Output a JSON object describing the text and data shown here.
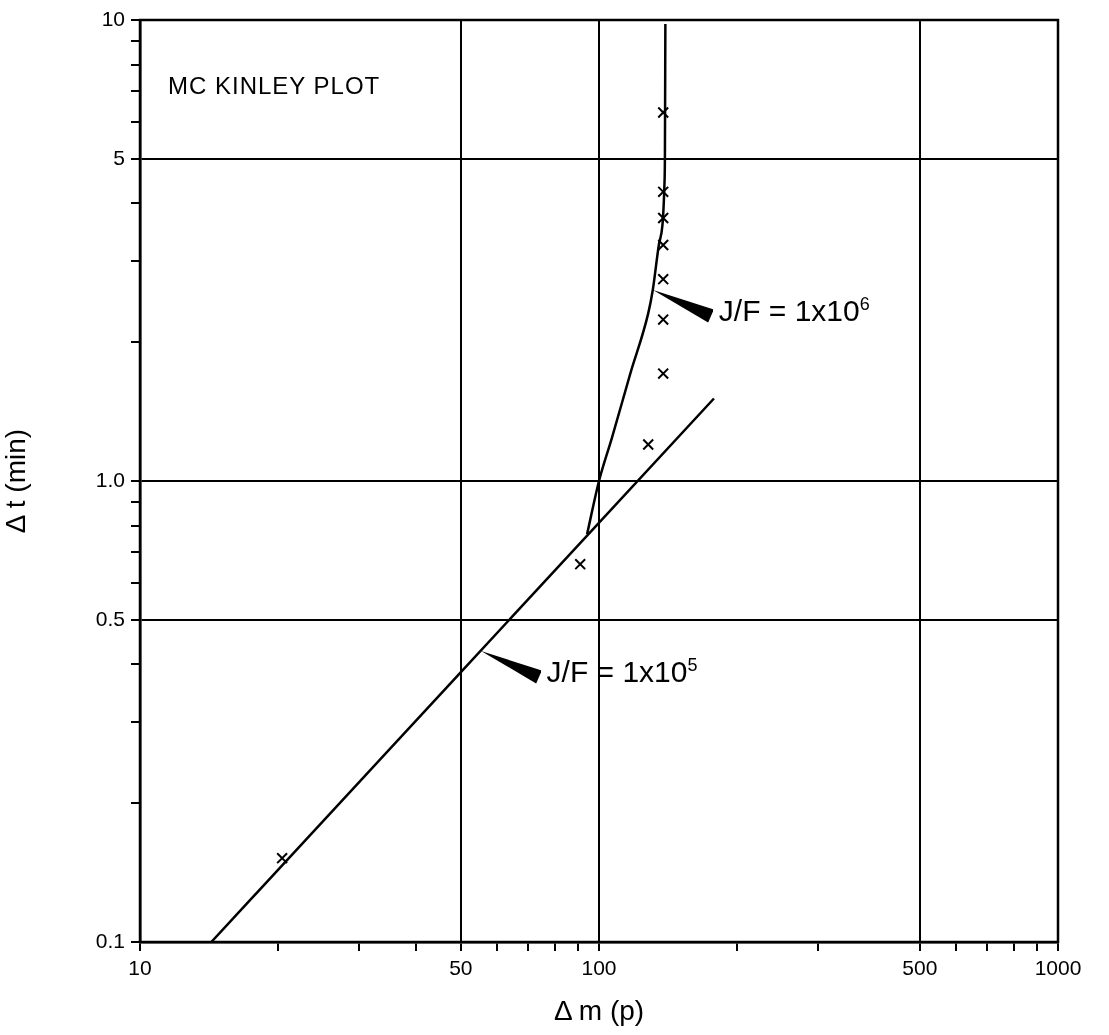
{
  "chart_data": {
    "type": "scatter",
    "title": "MC KINLEY PLOT",
    "xlabel": "Δ m (p)",
    "ylabel": "Δ t (min)",
    "log": "xy",
    "grid": true,
    "legend": false,
    "marker": "cross",
    "xlim": [
      10,
      1000
    ],
    "ylim": [
      0.1,
      10
    ],
    "xticks": [
      10,
      {
        "value": 20,
        "label": null
      },
      {
        "value": 30,
        "label": null
      },
      {
        "value": 40,
        "label": null
      },
      50,
      {
        "value": 60,
        "label": null
      },
      {
        "value": 70,
        "label": null
      },
      {
        "value": 80,
        "label": null
      },
      {
        "value": 90,
        "label": null
      },
      100,
      {
        "value": 200,
        "label": null
      },
      {
        "value": 300,
        "label": null
      },
      500,
      {
        "value": 600,
        "label": null
      },
      {
        "value": 700,
        "label": null
      },
      {
        "value": 800,
        "label": null
      },
      {
        "value": 900,
        "label": null
      },
      1000
    ],
    "yticks": [
      0.1,
      {
        "value": 0.2,
        "label": null
      },
      {
        "value": 0.3,
        "label": null
      },
      {
        "value": 0.4,
        "label": null
      },
      0.5,
      {
        "value": 0.6,
        "label": null
      },
      {
        "value": 0.7,
        "label": null
      },
      {
        "value": 0.8,
        "label": null
      },
      {
        "value": 0.9,
        "label": null
      },
      {
        "value": 1,
        "label": "1.0"
      },
      {
        "value": 2,
        "label": null
      },
      {
        "value": 3,
        "label": null
      },
      {
        "value": 4,
        "label": null
      },
      5,
      {
        "value": 6,
        "label": null
      },
      {
        "value": 7,
        "label": null
      },
      {
        "value": 8,
        "label": null
      },
      {
        "value": 9,
        "label": null
      },
      10
    ],
    "series": [
      {
        "color": "#000000",
        "x": [
          20.4,
          91,
          128,
          138,
          138,
          138,
          138,
          138,
          138,
          138
        ],
        "values": [
          0.152,
          0.66,
          1.2,
          1.71,
          2.24,
          2.74,
          3.25,
          3.72,
          4.24,
          6.3
        ]
      },
      {
        "type": "line",
        "color": "#000000",
        "marker": "none",
        "x": [
          14.3,
          178
        ],
        "values": [
          0.1,
          1.51
        ]
      },
      {
        "type": "line",
        "color": "#000000",
        "marker": "none",
        "x": [
          94.2,
          100,
          106.7,
          117,
          128,
          131,
          135,
          139,
          139.2,
          139.5
        ],
        "values": [
          0.767,
          1.0,
          1.24,
          1.71,
          2.31,
          2.6,
          3.25,
          4.54,
          5.15,
          9.8
        ]
      }
    ],
    "annotations": [
      {
        "text": "J/F = 1x10$^{6}$",
        "x": 131,
        "y": 2.6
      },
      {
        "text": "J/F = 1x10$^{5}$",
        "x": 55.2,
        "y": 0.428
      }
    ]
  }
}
